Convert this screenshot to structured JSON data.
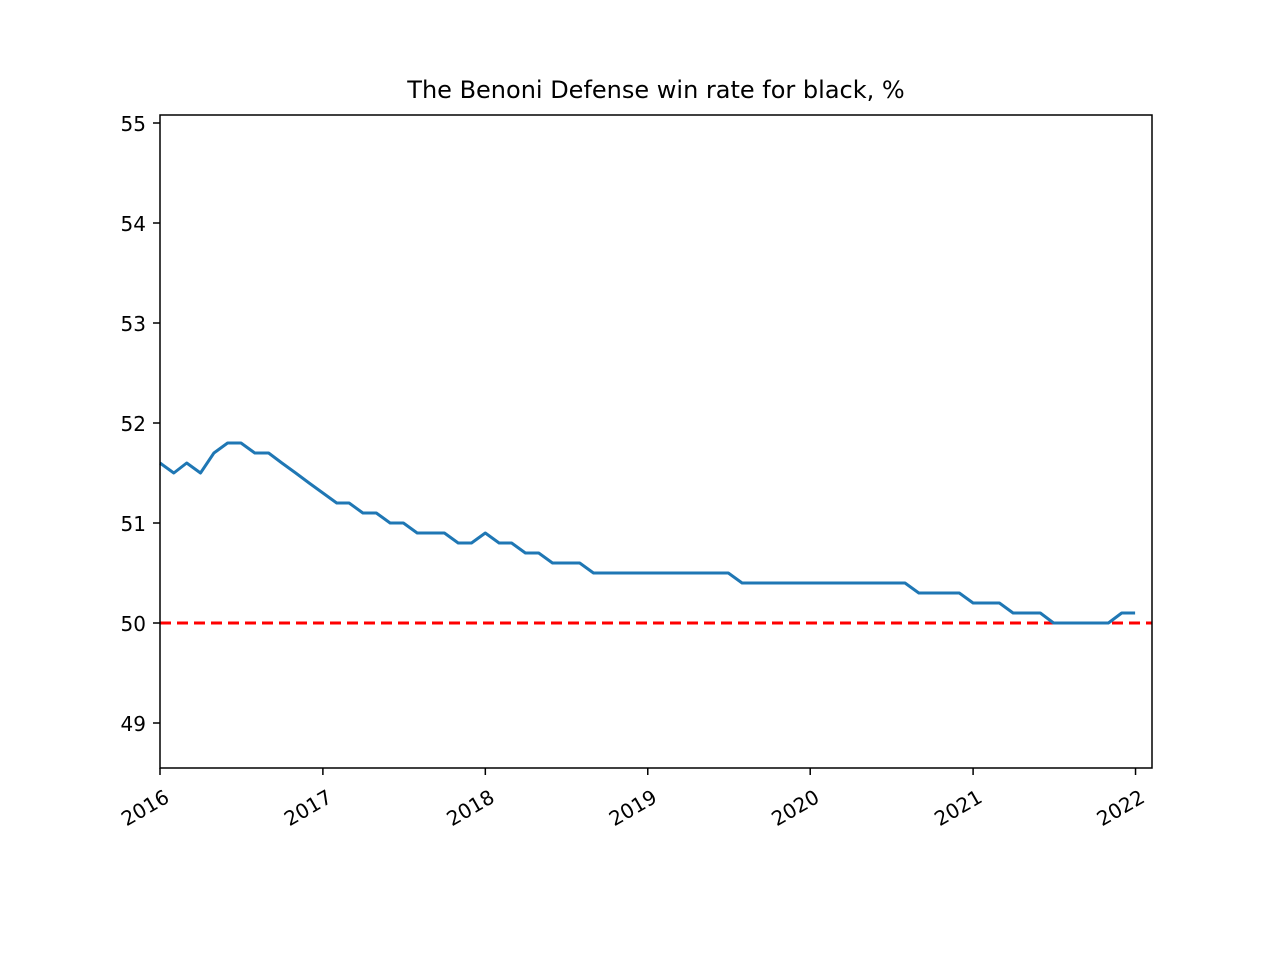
{
  "chart_data": {
    "type": "line",
    "title": "The Benoni Defense win rate for black, %",
    "xlabel": "",
    "ylabel": "",
    "x_ticks": [
      "2016",
      "2017",
      "2018",
      "2019",
      "2020",
      "2021",
      "2022"
    ],
    "y_ticks": [
      "49",
      "50",
      "51",
      "52",
      "53",
      "54",
      "55"
    ],
    "xlim": [
      "2016-01-01",
      "2022-02-07"
    ],
    "ylim": [
      48.55,
      55.08
    ],
    "grid": false,
    "legend": "none",
    "series": [
      {
        "x": [
          "2016-01-01",
          "2016-02-01",
          "2016-03-01",
          "2016-04-01",
          "2016-05-01",
          "2016-06-01",
          "2016-07-01",
          "2016-08-01",
          "2016-09-01",
          "2016-10-01",
          "2016-11-01",
          "2016-12-01",
          "2017-01-01",
          "2017-02-01",
          "2017-03-01",
          "2017-04-01",
          "2017-05-01",
          "2017-06-01",
          "2017-07-01",
          "2017-08-01",
          "2017-09-01",
          "2017-10-01",
          "2017-11-01",
          "2017-12-01",
          "2018-01-01",
          "2018-02-01",
          "2018-03-01",
          "2018-04-01",
          "2018-05-01",
          "2018-06-01",
          "2018-07-01",
          "2018-08-01",
          "2018-09-01",
          "2018-10-01",
          "2018-11-01",
          "2018-12-01",
          "2019-01-01",
          "2019-02-01",
          "2019-03-01",
          "2019-04-01",
          "2019-05-01",
          "2019-06-01",
          "2019-07-01",
          "2019-08-01",
          "2019-09-01",
          "2019-10-01",
          "2019-11-01",
          "2019-12-01",
          "2020-01-01",
          "2020-02-01",
          "2020-03-01",
          "2020-04-01",
          "2020-05-01",
          "2020-06-01",
          "2020-07-01",
          "2020-08-01",
          "2020-09-01",
          "2020-10-01",
          "2020-11-01",
          "2020-12-01",
          "2021-01-01",
          "2021-02-01",
          "2021-03-01",
          "2021-04-01",
          "2021-05-01",
          "2021-06-01",
          "2021-07-01",
          "2021-08-01",
          "2021-09-01",
          "2021-10-01",
          "2021-11-01",
          "2021-12-01",
          "2021-12-31"
        ],
        "values": [
          51.6,
          51.5,
          51.6,
          51.5,
          51.7,
          51.8,
          51.8,
          51.7,
          51.7,
          51.6,
          51.5,
          51.4,
          51.3,
          51.2,
          51.2,
          51.1,
          51.1,
          51.0,
          51.0,
          50.9,
          50.9,
          50.9,
          50.8,
          50.8,
          50.9,
          50.8,
          50.8,
          50.7,
          50.7,
          50.6,
          50.6,
          50.6,
          50.5,
          50.5,
          50.5,
          50.5,
          50.5,
          50.5,
          50.5,
          50.5,
          50.5,
          50.5,
          50.5,
          50.4,
          50.4,
          50.4,
          50.4,
          50.4,
          50.4,
          50.4,
          50.4,
          50.4,
          50.4,
          50.4,
          50.4,
          50.4,
          50.3,
          50.3,
          50.3,
          50.3,
          50.2,
          50.2,
          50.2,
          50.1,
          50.1,
          50.1,
          50.0,
          50.0,
          50.0,
          50.0,
          50.0,
          50.1,
          50.1
        ],
        "color": "#1f77b4"
      }
    ],
    "reference_line": {
      "y": 50,
      "color": "#ff0000",
      "style": "dashed"
    }
  }
}
